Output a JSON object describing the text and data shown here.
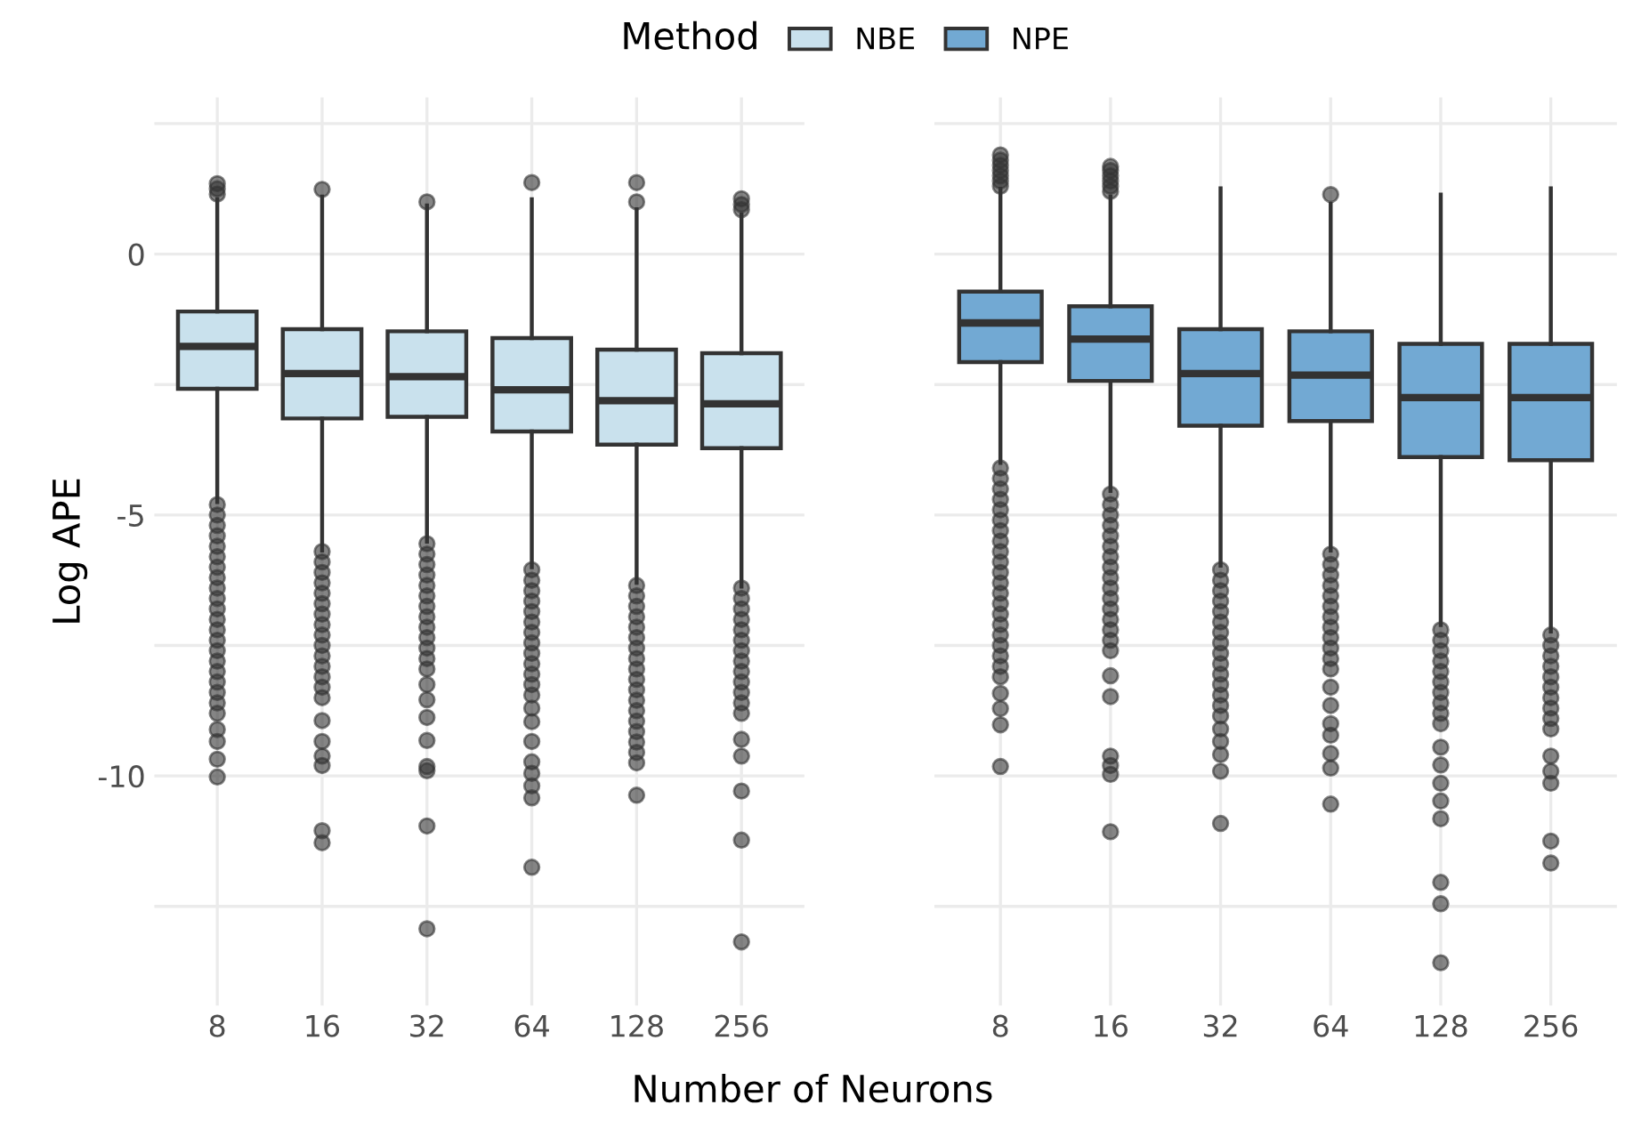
{
  "chart_data": [
    {
      "type": "box",
      "ylabel": "Log APE",
      "xlabel": "Number of Neurons",
      "legend": "top",
      "legend_title": "Method",
      "categories": [
        "8",
        "16",
        "32",
        "64",
        "128",
        "256"
      ],
      "ylim": [
        -14.4,
        3.0
      ],
      "yticks": [
        {
          "value": -12.5,
          "label": null
        },
        {
          "value": -10,
          "label": "-10"
        },
        {
          "value": -7.5,
          "label": null
        },
        {
          "value": -5,
          "label": "-5"
        },
        {
          "value": -2.5,
          "label": null
        },
        {
          "value": 0,
          "label": "0"
        },
        {
          "value": 2.5,
          "label": null
        }
      ],
      "grid": true,
      "series": [
        {
          "name": "NBE",
          "color": "#c9e1ed",
          "boxes": [
            {
              "low": -4.75,
              "q1": -2.58,
              "median": -1.77,
              "q3": -1.1,
              "high": 1.05,
              "outliers": [
                1.15,
                1.25,
                1.35,
                -4.8,
                -5.0,
                -5.2,
                -5.4,
                -5.6,
                -5.8,
                -6.0,
                -6.2,
                -6.4,
                -6.6,
                -6.8,
                -7.0,
                -7.2,
                -7.4,
                -7.6,
                -7.8,
                -8.0,
                -8.2,
                -8.4,
                -8.6,
                -8.8,
                -9.11,
                -9.34,
                -9.68,
                -10.02
              ]
            },
            {
              "low": -5.68,
              "q1": -3.15,
              "median": -2.29,
              "q3": -1.44,
              "high": 1.1,
              "outliers": [
                1.24,
                -5.7,
                -5.9,
                -6.1,
                -6.3,
                -6.5,
                -6.7,
                -6.9,
                -7.1,
                -7.3,
                -7.5,
                -7.7,
                -7.9,
                -8.1,
                -8.3,
                -8.5,
                -8.94,
                -9.34,
                -9.62,
                -9.8,
                -11.05,
                -11.28
              ]
            },
            {
              "low": -5.51,
              "q1": -3.12,
              "median": -2.35,
              "q3": -1.48,
              "high": 0.93,
              "outliers": [
                1.0,
                -5.55,
                -5.75,
                -5.95,
                -6.15,
                -6.35,
                -6.55,
                -6.75,
                -6.95,
                -7.15,
                -7.35,
                -7.55,
                -7.75,
                -7.95,
                -8.25,
                -8.54,
                -8.88,
                -9.32,
                -9.82,
                -9.9,
                -10.96,
                -12.93
              ]
            },
            {
              "low": -6.0,
              "q1": -3.4,
              "median": -2.6,
              "q3": -1.61,
              "high": 1.05,
              "outliers": [
                1.37,
                -6.05,
                -6.25,
                -6.45,
                -6.65,
                -6.85,
                -7.05,
                -7.25,
                -7.45,
                -7.65,
                -7.85,
                -8.05,
                -8.25,
                -8.45,
                -8.7,
                -8.96,
                -9.34,
                -9.73,
                -9.95,
                -10.19,
                -10.42,
                -11.75
              ]
            },
            {
              "low": -6.3,
              "q1": -3.65,
              "median": -2.81,
              "q3": -1.83,
              "high": 0.86,
              "outliers": [
                1.0,
                1.37,
                -6.35,
                -6.55,
                -6.75,
                -6.95,
                -7.15,
                -7.35,
                -7.55,
                -7.75,
                -7.95,
                -8.15,
                -8.35,
                -8.55,
                -8.75,
                -8.95,
                -9.15,
                -9.35,
                -9.55,
                -9.75,
                -10.37
              ]
            },
            {
              "low": -6.37,
              "q1": -3.72,
              "median": -2.87,
              "q3": -1.9,
              "high": 0.76,
              "outliers": [
                0.85,
                0.95,
                1.06,
                -6.4,
                -6.6,
                -6.8,
                -7.0,
                -7.2,
                -7.4,
                -7.6,
                -7.8,
                -8.0,
                -8.2,
                -8.4,
                -8.6,
                -8.8,
                -9.3,
                -9.62,
                -10.29,
                -11.23,
                -13.18
              ]
            }
          ]
        }
      ]
    },
    {
      "type": "box",
      "legend": "top",
      "categories": [
        "8",
        "16",
        "32",
        "64",
        "128",
        "256"
      ],
      "ylim": [
        -14.4,
        3.0
      ],
      "yticks": [
        {
          "value": -12.5,
          "label": null
        },
        {
          "value": -10,
          "label": null
        },
        {
          "value": -7.5,
          "label": null
        },
        {
          "value": -5,
          "label": null
        },
        {
          "value": -2.5,
          "label": null
        },
        {
          "value": 0,
          "label": null
        },
        {
          "value": 2.5,
          "label": null
        }
      ],
      "grid": true,
      "tick_labels": "x",
      "series": [
        {
          "name": "NPE",
          "color": "#72a9d3",
          "boxes": [
            {
              "low": -4.0,
              "q1": -2.07,
              "median": -1.32,
              "q3": -0.72,
              "high": 1.25,
              "outliers": [
                1.3,
                1.4,
                1.5,
                1.6,
                1.7,
                1.8,
                1.9,
                -4.1,
                -4.3,
                -4.5,
                -4.7,
                -4.9,
                -5.1,
                -5.3,
                -5.5,
                -5.7,
                -5.9,
                -6.1,
                -6.3,
                -6.5,
                -6.7,
                -6.9,
                -7.1,
                -7.3,
                -7.5,
                -7.7,
                -7.9,
                -8.1,
                -8.42,
                -8.71,
                -9.02,
                -9.82
              ]
            },
            {
              "low": -4.54,
              "q1": -2.43,
              "median": -1.63,
              "q3": -1.0,
              "high": 1.1,
              "outliers": [
                1.2,
                1.3,
                1.4,
                1.5,
                1.6,
                1.68,
                -4.6,
                -4.8,
                -5.0,
                -5.2,
                -5.4,
                -5.6,
                -5.8,
                -6.0,
                -6.2,
                -6.4,
                -6.6,
                -6.8,
                -7.0,
                -7.2,
                -7.4,
                -7.6,
                -8.08,
                -8.48,
                -9.62,
                -9.8,
                -9.97,
                -11.07
              ]
            },
            {
              "low": -5.97,
              "q1": -3.29,
              "median": -2.29,
              "q3": -1.44,
              "high": 1.26,
              "outliers": [
                -6.05,
                -6.25,
                -6.45,
                -6.65,
                -6.85,
                -7.05,
                -7.25,
                -7.45,
                -7.65,
                -7.85,
                -8.05,
                -8.25,
                -8.45,
                -8.65,
                -8.85,
                -9.1,
                -9.34,
                -9.59,
                -9.91,
                -10.91
              ]
            },
            {
              "low": -5.68,
              "q1": -3.2,
              "median": -2.32,
              "q3": -1.48,
              "high": 0.96,
              "outliers": [
                1.14,
                -5.75,
                -5.95,
                -6.15,
                -6.35,
                -6.55,
                -6.75,
                -6.95,
                -7.15,
                -7.35,
                -7.55,
                -7.75,
                -7.95,
                -8.3,
                -8.65,
                -9.0,
                -9.22,
                -9.57,
                -9.85,
                -10.54
              ]
            },
            {
              "low": -7.11,
              "q1": -3.89,
              "median": -2.75,
              "q3": -1.72,
              "high": 1.14,
              "outliers": [
                -7.2,
                -7.4,
                -7.6,
                -7.8,
                -8.0,
                -8.2,
                -8.4,
                -8.6,
                -8.8,
                -9.0,
                -9.45,
                -9.79,
                -10.14,
                -10.48,
                -10.82,
                -12.04,
                -12.45,
                -13.58
              ]
            },
            {
              "low": -7.23,
              "q1": -3.95,
              "median": -2.75,
              "q3": -1.72,
              "high": 1.26,
              "outliers": [
                -7.3,
                -7.5,
                -7.7,
                -7.9,
                -8.1,
                -8.3,
                -8.5,
                -8.7,
                -8.9,
                -9.1,
                -9.62,
                -9.91,
                -10.14,
                -11.25,
                -11.67
              ]
            }
          ]
        }
      ]
    }
  ]
}
